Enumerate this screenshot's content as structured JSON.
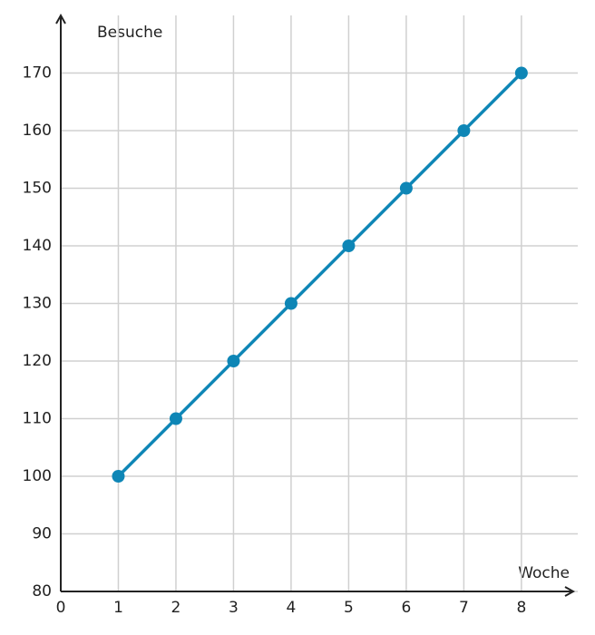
{
  "chart_data": {
    "type": "line",
    "x_label": "Woche",
    "y_label": "Besuche",
    "x": [
      1,
      2,
      3,
      4,
      5,
      6,
      7,
      8
    ],
    "values": [
      100,
      110,
      120,
      130,
      140,
      150,
      160,
      170
    ],
    "color": "#0e86b6",
    "xlim": [
      0,
      8.9
    ],
    "ylim": [
      80,
      180
    ],
    "xticks": [
      0,
      1,
      2,
      3,
      4,
      5,
      6,
      7,
      8
    ],
    "yticks": [
      80,
      90,
      100,
      110,
      120,
      130,
      140,
      150,
      160,
      170
    ],
    "grid": true
  }
}
